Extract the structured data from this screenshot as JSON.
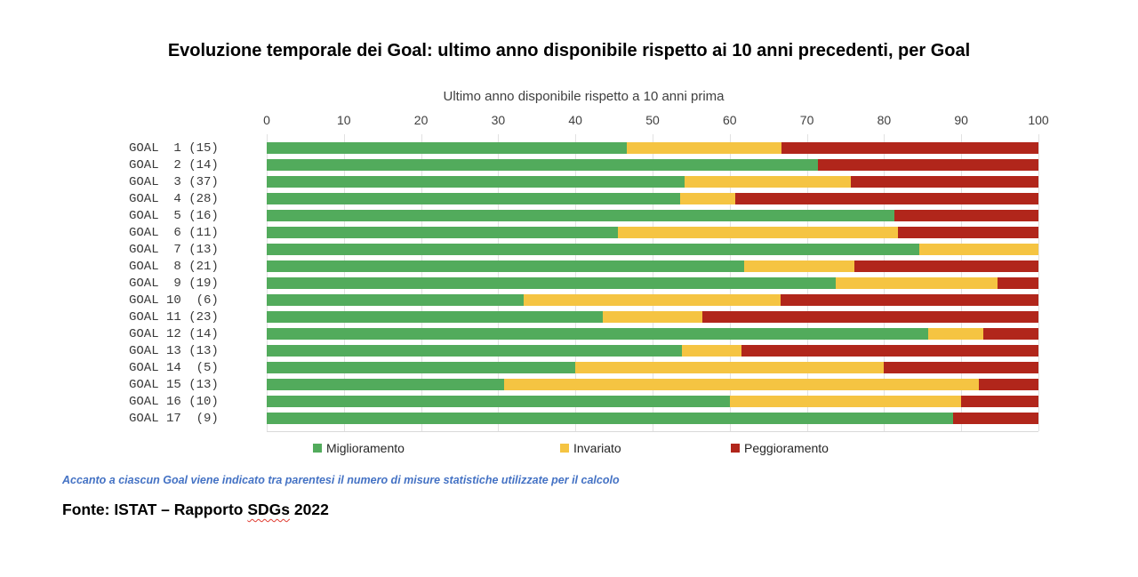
{
  "page": {
    "title": "Evoluzione temporale dei Goal: ultimo anno disponibile rispetto ai 10 anni precedenti, per Goal",
    "footnote": "Accanto a ciascun Goal viene indicato tra parentesi il numero di misure statistiche utilizzate per il calcolo",
    "source": {
      "prefix": "Fonte: ISTAT – Rapporto ",
      "underlined": "SDGs",
      "suffix": " 2022"
    }
  },
  "chart_data": {
    "type": "bar",
    "orientation": "horizontal",
    "stacked": true,
    "grid": true,
    "legend_position": "bottom",
    "axis_title": "Ultimo anno disponibile rispetto a 10 anni prima",
    "xlim": [
      0,
      100
    ],
    "xticks": [
      0,
      10,
      20,
      30,
      40,
      50,
      60,
      70,
      80,
      90,
      100
    ],
    "series_names": [
      "Miglioramento",
      "Invariato",
      "Peggioramento"
    ],
    "series_colors": [
      "#52ab5c",
      "#f5c442",
      "#b1261b"
    ],
    "rows": [
      {
        "label": "GOAL  1 (15)",
        "goal": 1,
        "measures": 15,
        "values": [
          46.7,
          20.0,
          33.3
        ]
      },
      {
        "label": "GOAL  2 (14)",
        "goal": 2,
        "measures": 14,
        "values": [
          71.4,
          0,
          28.6
        ]
      },
      {
        "label": "GOAL  3 (37)",
        "goal": 3,
        "measures": 37,
        "values": [
          54.1,
          21.6,
          24.3
        ]
      },
      {
        "label": "GOAL  4 (28)",
        "goal": 4,
        "measures": 28,
        "values": [
          53.6,
          7.1,
          39.3
        ]
      },
      {
        "label": "GOAL  5 (16)",
        "goal": 5,
        "measures": 16,
        "values": [
          81.3,
          0,
          18.7
        ]
      },
      {
        "label": "GOAL  6 (11)",
        "goal": 6,
        "measures": 11,
        "values": [
          45.5,
          36.3,
          18.2
        ]
      },
      {
        "label": "GOAL  7 (13)",
        "goal": 7,
        "measures": 13,
        "values": [
          84.6,
          15.4,
          0
        ]
      },
      {
        "label": "GOAL  8 (21)",
        "goal": 8,
        "measures": 21,
        "values": [
          61.9,
          14.3,
          23.8
        ]
      },
      {
        "label": "GOAL  9 (19)",
        "goal": 9,
        "measures": 19,
        "values": [
          73.7,
          21.0,
          5.3
        ]
      },
      {
        "label": "GOAL 10  (6)",
        "goal": 10,
        "measures": 6,
        "values": [
          33.3,
          33.3,
          33.4
        ]
      },
      {
        "label": "GOAL 11 (23)",
        "goal": 11,
        "measures": 23,
        "values": [
          43.5,
          13.0,
          43.5
        ]
      },
      {
        "label": "GOAL 12 (14)",
        "goal": 12,
        "measures": 14,
        "values": [
          85.7,
          7.1,
          7.2
        ]
      },
      {
        "label": "GOAL 13 (13)",
        "goal": 13,
        "measures": 13,
        "values": [
          53.8,
          7.7,
          38.5
        ]
      },
      {
        "label": "GOAL 14  (5)",
        "goal": 14,
        "measures": 5,
        "values": [
          40.0,
          40.0,
          20.0
        ]
      },
      {
        "label": "GOAL 15 (13)",
        "goal": 15,
        "measures": 13,
        "values": [
          30.8,
          61.5,
          7.7
        ]
      },
      {
        "label": "GOAL 16 (10)",
        "goal": 16,
        "measures": 10,
        "values": [
          60.0,
          30.0,
          10.0
        ]
      },
      {
        "label": "GOAL 17  (9)",
        "goal": 17,
        "measures": 9,
        "values": [
          88.9,
          0,
          11.1
        ]
      }
    ]
  }
}
